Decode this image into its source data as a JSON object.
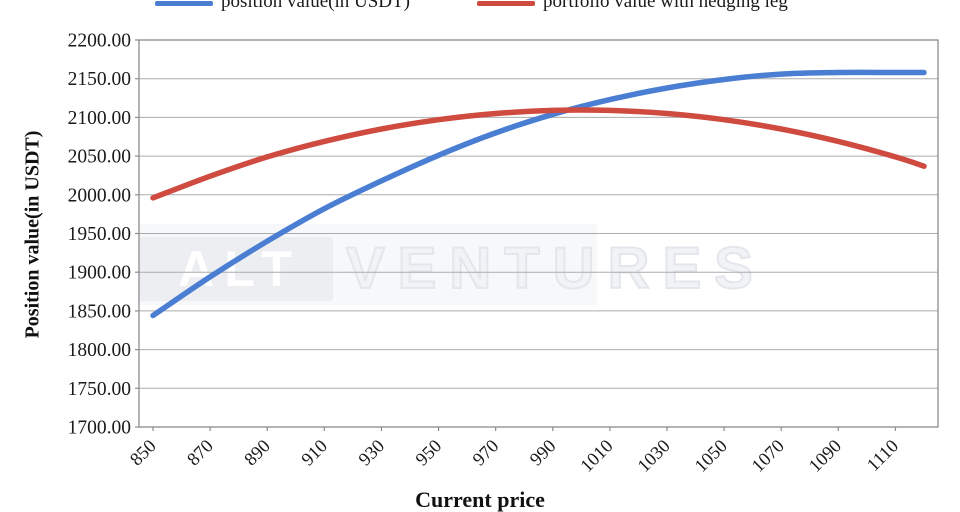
{
  "chart_data": {
    "type": "line",
    "title": "",
    "xlabel": "Current price",
    "ylabel": "Position value(in USDT)",
    "x": [
      850,
      870,
      890,
      910,
      930,
      950,
      970,
      990,
      1010,
      1030,
      1050,
      1070,
      1090,
      1110,
      1120
    ],
    "series": [
      {
        "name": "position value(in USDT)",
        "color": "#4a7ed2",
        "values": [
          1844,
          1894,
          1940,
          1982,
          2018,
          2051,
          2080,
          2104,
          2123,
          2138,
          2149,
          2156,
          2158,
          2158,
          2158
        ]
      },
      {
        "name": "portfolio value with hedging leg",
        "color": "#cf4a3f",
        "values": [
          1996,
          2024,
          2049,
          2069,
          2085,
          2097,
          2105,
          2109,
          2109,
          2105,
          2097,
          2085,
          2069,
          2049,
          2037
        ]
      }
    ],
    "xlim": [
      850,
      1120
    ],
    "ylim": [
      1700,
      2200
    ],
    "x_ticks": [
      "850",
      "870",
      "890",
      "910",
      "930",
      "950",
      "970",
      "990",
      "1010",
      "1030",
      "1050",
      "1070",
      "1090",
      "1110"
    ],
    "y_ticks": [
      "1700.00",
      "1750.00",
      "1800.00",
      "1850.00",
      "1900.00",
      "1950.00",
      "2000.00",
      "2050.00",
      "2100.00",
      "2150.00",
      "2200.00"
    ],
    "grid": "horizontal",
    "legend_position": "top",
    "gridline_color": "#ababab",
    "border_color": "#8c8c8c",
    "tick_label_color": "#1a1a1a"
  },
  "watermark": {
    "badge_text": "ALT",
    "outline_text": "VENTURES"
  }
}
